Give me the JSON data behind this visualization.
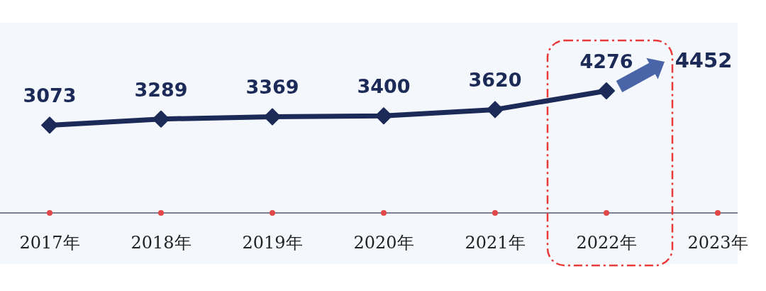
{
  "chart_data": {
    "type": "line",
    "categories": [
      "2017年",
      "2018年",
      "2019年",
      "2020年",
      "2021年",
      "2022年",
      "2023年"
    ],
    "series": [
      {
        "color": "#1b2a57",
        "values": [
          3073,
          3289,
          3369,
          3400,
          3620,
          4276,
          null
        ]
      }
    ],
    "data_labels": true,
    "marker": "diamond",
    "annotations": [
      "4452"
    ]
  }
}
